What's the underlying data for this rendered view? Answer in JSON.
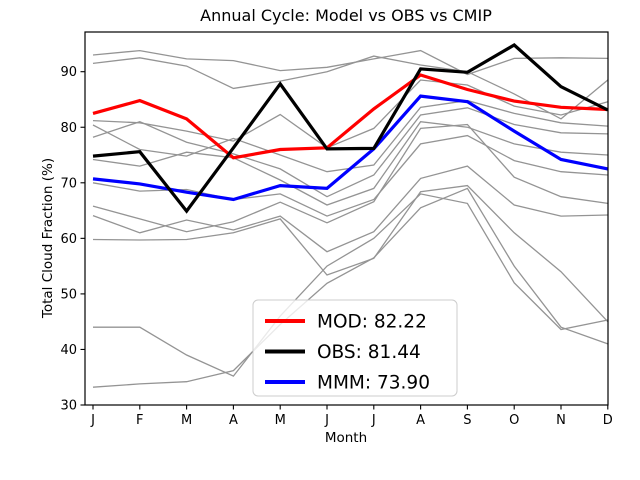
{
  "figure": {
    "background": "#ffffff",
    "spine_color": "#000000",
    "cmip_line_color": "#949494",
    "text_color": "#000000"
  },
  "chart_data": {
    "type": "line",
    "title": "Annual Cycle: Model vs OBS vs CMIP",
    "xlabel": "Month",
    "ylabel": "Total Cloud Fraction (%)",
    "categories": [
      "J",
      "F",
      "M",
      "A",
      "M",
      "J",
      "J",
      "A",
      "S",
      "O",
      "N",
      "D"
    ],
    "yticks": [
      30,
      40,
      50,
      60,
      70,
      80,
      90
    ],
    "ylim": [
      30,
      97.15
    ],
    "grid": false,
    "legend_position": "lower-center",
    "legend": [
      {
        "label": "MOD: 82.22",
        "color": "#ff0000"
      },
      {
        "label": "OBS: 81.44",
        "color": "#000000"
      },
      {
        "label": "MMM: 73.90",
        "color": "#0000ff"
      }
    ],
    "series": [
      {
        "id": "cmip-01",
        "color": "#949494",
        "width": 1.3,
        "values": [
          93.0,
          93.8,
          92.3,
          92.0,
          90.2,
          90.8,
          92.3,
          93.8,
          89.5,
          92.4,
          92.5,
          92.4
        ]
      },
      {
        "id": "cmip-02",
        "color": "#949494",
        "width": 1.3,
        "values": [
          91.5,
          92.5,
          91.0,
          87.0,
          88.3,
          90.0,
          92.8,
          91.2,
          90.0,
          86.0,
          81.5,
          88.5
        ]
      },
      {
        "id": "cmip-03",
        "color": "#949494",
        "width": 1.3,
        "values": [
          81.2,
          80.8,
          79.3,
          77.5,
          82.3,
          76.3,
          79.8,
          88.5,
          87.6,
          83.8,
          82.2,
          84.6
        ]
      },
      {
        "id": "cmip-04",
        "color": "#949494",
        "width": 1.3,
        "values": [
          80.4,
          76.0,
          74.8,
          78.0,
          75.0,
          72.0,
          73.2,
          83.6,
          84.8,
          82.5,
          80.8,
          80.2
        ]
      },
      {
        "id": "cmip-05",
        "color": "#949494",
        "width": 1.3,
        "values": [
          78.2,
          81.0,
          77.3,
          75.2,
          72.5,
          67.5,
          71.4,
          82.2,
          83.5,
          80.5,
          79.0,
          78.8
        ]
      },
      {
        "id": "cmip-06",
        "color": "#949494",
        "width": 1.3,
        "values": [
          74.2,
          73.0,
          75.5,
          74.5,
          70.5,
          66.0,
          69.0,
          81.0,
          80.0,
          77.0,
          75.5,
          75.0
        ]
      },
      {
        "id": "cmip-07",
        "color": "#949494",
        "width": 1.3,
        "values": [
          70.0,
          68.5,
          68.8,
          67.0,
          68.0,
          64.0,
          67.0,
          77.0,
          78.5,
          74.0,
          72.0,
          71.4
        ]
      },
      {
        "id": "cmip-08",
        "color": "#949494",
        "width": 1.3,
        "values": [
          65.8,
          63.5,
          61.2,
          63.0,
          66.5,
          62.8,
          66.6,
          79.8,
          80.5,
          71.0,
          67.5,
          66.3
        ]
      },
      {
        "id": "cmip-09",
        "color": "#949494",
        "width": 1.3,
        "values": [
          64.1,
          61.0,
          63.3,
          61.5,
          64.0,
          57.6,
          61.2,
          70.8,
          73.0,
          66.0,
          64.0,
          64.2
        ]
      },
      {
        "id": "cmip-10",
        "color": "#949494",
        "width": 1.3,
        "values": [
          59.8,
          59.7,
          59.8,
          61.0,
          63.5,
          53.4,
          56.4,
          68.4,
          69.5,
          61.0,
          54.0,
          45.0
        ]
      },
      {
        "id": "cmip-11",
        "color": "#949494",
        "width": 1.3,
        "values": [
          44.0,
          44.0,
          39.0,
          35.2,
          46.0,
          55.0,
          60.0,
          68.0,
          66.3,
          52.0,
          43.6,
          45.3
        ]
      },
      {
        "id": "cmip-12",
        "color": "#949494",
        "width": 1.3,
        "values": [
          33.2,
          33.8,
          34.2,
          36.2,
          44.5,
          51.9,
          56.5,
          65.5,
          69.0,
          55.0,
          44.0,
          41.0
        ]
      },
      {
        "id": "MOD",
        "color": "#ff0000",
        "width": 3.2,
        "values": [
          82.5,
          84.8,
          81.5,
          74.5,
          76.0,
          76.3,
          83.3,
          89.4,
          86.8,
          84.7,
          83.6,
          83.2
        ]
      },
      {
        "id": "MMM",
        "color": "#0000ff",
        "width": 3.2,
        "values": [
          70.7,
          69.8,
          68.3,
          67.0,
          69.5,
          69.0,
          76.1,
          85.6,
          84.6,
          79.3,
          74.2,
          72.5
        ]
      },
      {
        "id": "OBS",
        "color": "#000000",
        "width": 3.2,
        "values": [
          74.8,
          75.6,
          64.9,
          76.3,
          87.8,
          76.1,
          76.2,
          90.5,
          89.9,
          94.8,
          87.3,
          83.1
        ]
      }
    ]
  }
}
